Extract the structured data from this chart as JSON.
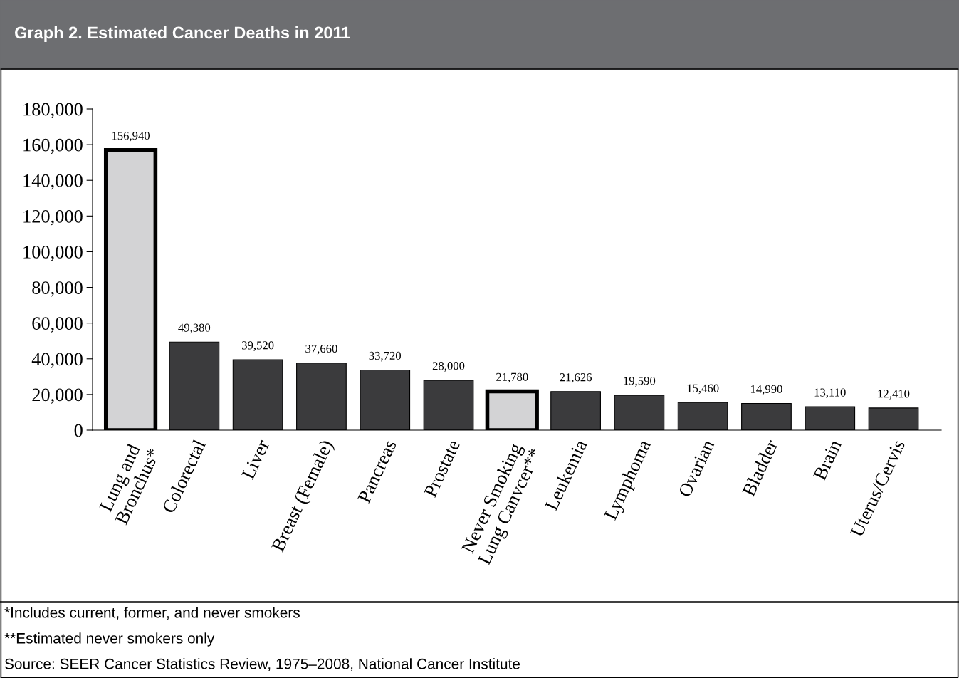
{
  "chart_data": {
    "type": "bar",
    "title": "Graph 2. Estimated Cancer Deaths in 2011",
    "categories": [
      "Lung and\nBronchus*",
      "Colorectal",
      "Liver",
      "Breast (Female)",
      "Pancreas",
      "Prostate",
      "Never Smoking\nLung Canvcer**",
      "Leukemia",
      "Lymphoma",
      "Ovarian",
      "Bladder",
      "Brain",
      "Uterus/Cervis"
    ],
    "values": [
      156940,
      49380,
      39520,
      37660,
      33720,
      28000,
      21780,
      21626,
      19590,
      15460,
      14990,
      13110,
      12410
    ],
    "colors": [
      "#d3d3d5",
      "#3b3b3d",
      "#3b3b3d",
      "#3b3b3d",
      "#3b3b3d",
      "#3b3b3d",
      "#d3d3d5",
      "#3b3b3d",
      "#3b3b3d",
      "#3b3b3d",
      "#3b3b3d",
      "#3b3b3d",
      "#3b3b3d"
    ],
    "ylim": [
      0,
      180000
    ],
    "yticks": [
      {
        "value": 0,
        "label": "0"
      },
      {
        "value": 20000,
        "label": "20,000"
      },
      {
        "value": 40000,
        "label": "40,000"
      },
      {
        "value": 60000,
        "label": "60,000"
      },
      {
        "value": 80000,
        "label": "80,000"
      },
      {
        "value": 100000,
        "label": "100,000"
      },
      {
        "value": 120000,
        "label": "120,000"
      },
      {
        "value": 140000,
        "label": "140,000"
      },
      {
        "value": 160000,
        "label": "160,000"
      },
      {
        "value": 180000,
        "label": "180,000"
      }
    ],
    "value_labels": [
      "156,940",
      "49,380",
      "39,520",
      "37,660",
      "33,720",
      "28,000",
      "21,780",
      "21,626",
      "19,590",
      "15,460",
      "14,990",
      "13,110",
      "12,410"
    ],
    "grid": false,
    "legend": false,
    "annotations": [
      "*Includes current, former, and never smokers",
      "**Estimated never smokers only",
      "Source: SEER Cancer Statistics Review, 1975–2008, National Cancer Institute"
    ]
  }
}
